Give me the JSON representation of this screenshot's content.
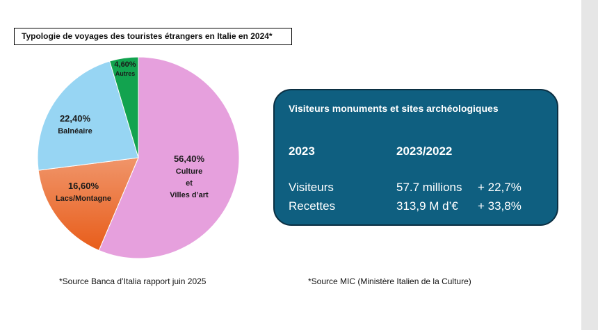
{
  "chart_data": {
    "type": "pie",
    "title": "Typologie de voyages des touristes étrangers en Italie en 2024*",
    "slices": [
      {
        "value": 56.4,
        "pct_label": "56,40%",
        "label_lines": [
          "Culture",
          "et",
          "Villes d’art"
        ],
        "color": "#e6a0dd"
      },
      {
        "value": 16.6,
        "pct_label": "16,60%",
        "label_lines": [
          "Lacs/Montagne"
        ],
        "color": "#ec7534",
        "color2": "#f0956a"
      },
      {
        "value": 22.4,
        "pct_label": "22,40%",
        "label_lines": [
          "Balnéaire"
        ],
        "color": "#97d5f3"
      },
      {
        "value": 4.6,
        "pct_label": "4,60%",
        "label_lines": [
          "Autres"
        ],
        "color": "#12a34f"
      }
    ],
    "source": "*Source Banca d’Italia rapport juin 2025"
  },
  "stats": {
    "title": "Visiteurs monuments et sites archéologiques",
    "col_year": "2023",
    "col_change": "2023/2022",
    "rows": [
      {
        "label": "Visiteurs",
        "value": "57.7 millions",
        "change": "+ 22,7%"
      },
      {
        "label": "Recettes",
        "value": "313,9 M d’€",
        "change": "+ 33,8%"
      }
    ],
    "source": "*Source MIC (Ministère Italien de la Culture)"
  }
}
